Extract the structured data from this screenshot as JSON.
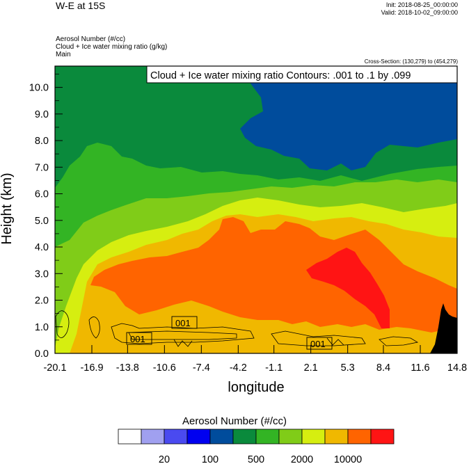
{
  "header": {
    "title": "W-E at 15S",
    "init": "Init: 2018-08-25_00:00:00",
    "valid": "Valid: 2018-10-02_09:00:00",
    "vars": [
      "Aerosol Number   (#/cc)",
      "Cloud + Ice water mixing ratio   (g/kg)",
      "Main"
    ],
    "cross_section": "Cross-Section: (130,279) to (454,279)"
  },
  "chart_data": {
    "type": "heatmap",
    "title": "W-E at 15S",
    "xlabel": "longitude",
    "ylabel": "Height (km)",
    "x_ticks": [
      "-20.1",
      "-16.9",
      "-13.8",
      "-10.6",
      "-7.4",
      "-4.2",
      "-1.1",
      "2.1",
      "5.3",
      "8.4",
      "11.6",
      "14.8"
    ],
    "y_ticks": [
      "0.0",
      "1.0",
      "2.0",
      "3.0",
      "4.0",
      "5.0",
      "6.0",
      "7.0",
      "8.0",
      "9.0",
      "10.0"
    ],
    "xlim": [
      -20.1,
      14.8
    ],
    "ylim": [
      0,
      10.8
    ],
    "contour_label": "Cloud + Ice water mixing ratio Contours: .001 to .1 by .099",
    "contour_values": [
      "001",
      "001",
      "001"
    ],
    "colorbar": {
      "title": "Aerosol Number  (#/cc)",
      "labels": [
        "20",
        "100",
        "500",
        "2000",
        "10000"
      ],
      "colors": [
        "#ffffff",
        "#a0a0f0",
        "#4a4af0",
        "#0000f0",
        "#004c9c",
        "#0a8a3c",
        "#33b424",
        "#80cc18",
        "#d6ee10",
        "#f0b800",
        "#ff6400",
        "#ff1414"
      ]
    },
    "colors": {
      "blue": "#004c9c",
      "dark_green": "#0a8a3c",
      "green": "#33b424",
      "light_green": "#80cc18",
      "yellow": "#d6ee10",
      "orange": "#f0b800",
      "red_orange": "#ff6400",
      "red": "#ff1414",
      "terrain": "#000000"
    }
  }
}
